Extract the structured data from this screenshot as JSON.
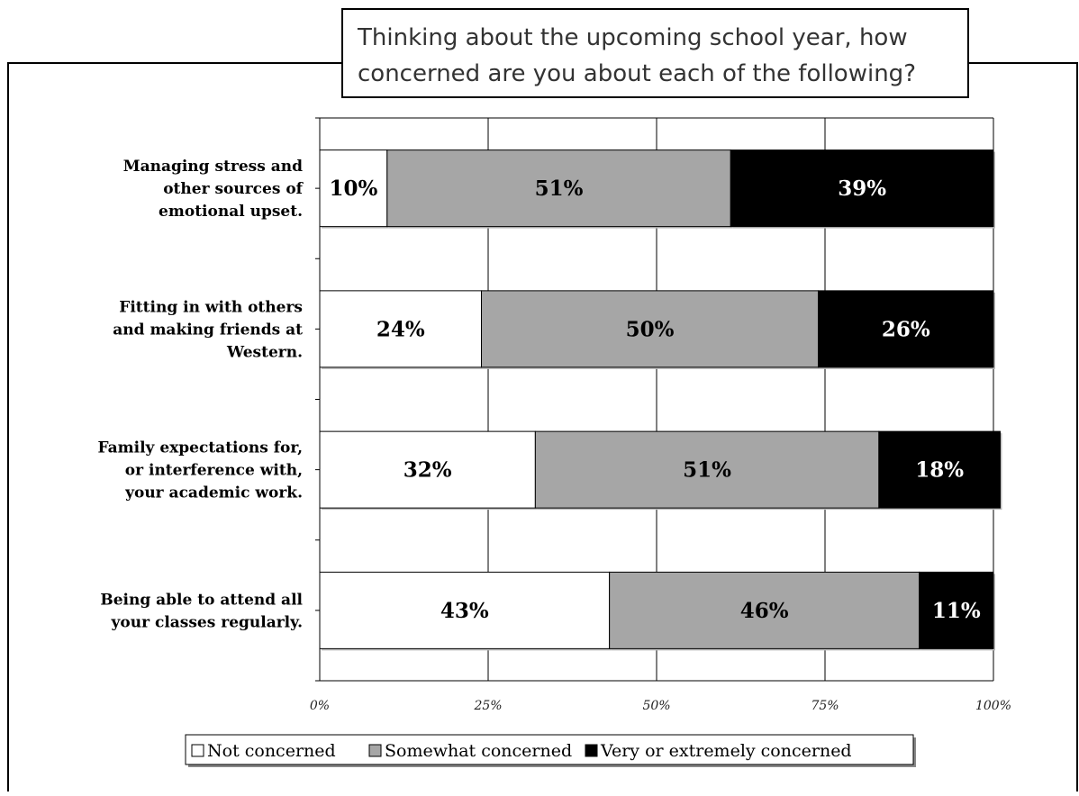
{
  "chart_data": {
    "type": "bar",
    "orientation": "horizontal",
    "stacked": true,
    "title_lines": [
      "Thinking about the upcoming school year, how",
      "concerned are you about each of the following?"
    ],
    "categories": [
      [
        "Managing stress and",
        "other sources of",
        "emotional upset."
      ],
      [
        "Fitting in with others",
        "and making friends at",
        "Western."
      ],
      [
        "Family expectations for,",
        "or interference with,",
        "your academic work."
      ],
      [
        "Being able to attend all",
        "your classes regularly."
      ]
    ],
    "series": [
      {
        "name": "Not concerned",
        "color": "#ffffff",
        "label_color": "#000000",
        "values": [
          10,
          24,
          32,
          43
        ],
        "labels": [
          "10%",
          "24%",
          "32%",
          "43%"
        ]
      },
      {
        "name": "Somewhat concerned",
        "color": "#a6a6a6",
        "label_color": "#000000",
        "values": [
          51,
          50,
          51,
          46
        ],
        "labels": [
          "51%",
          "50%",
          "51%",
          "46%"
        ]
      },
      {
        "name": "Very or extremely concerned",
        "color": "#000000",
        "label_color": "#ffffff",
        "values": [
          39,
          26,
          18,
          11
        ],
        "labels": [
          "39%",
          "26%",
          "18%",
          "11%"
        ]
      }
    ],
    "xlim": [
      0,
      100
    ],
    "xticks": [
      0,
      25,
      50,
      75,
      100
    ],
    "xtick_labels": [
      "0%",
      "25%",
      "50%",
      "75%",
      "100%"
    ],
    "grid": true,
    "legend_position": "bottom"
  }
}
